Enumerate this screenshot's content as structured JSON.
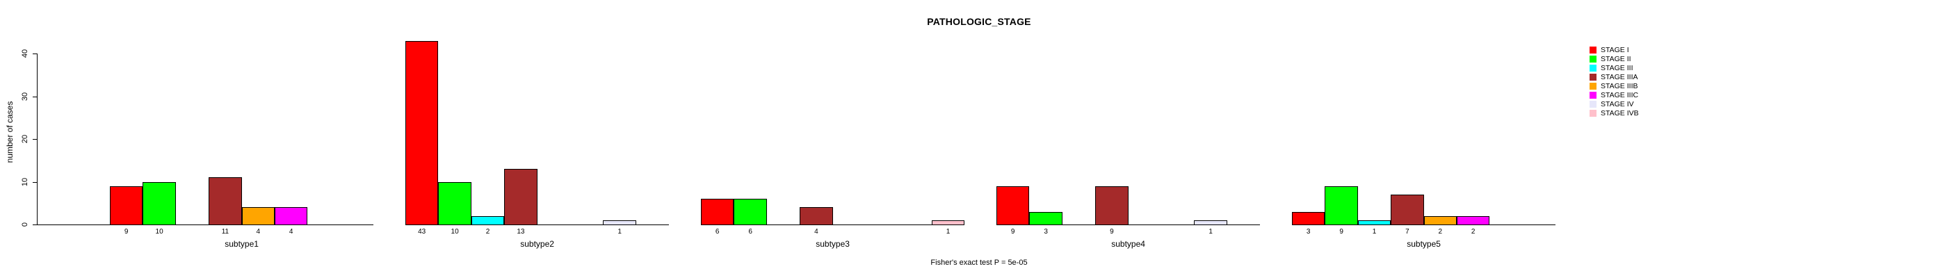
{
  "title": "PATHOLOGIC_STAGE",
  "subtitle": "Fisher's exact test P = 5e-05",
  "ylabel": "number of cases",
  "chart_data": {
    "type": "bar",
    "title": "PATHOLOGIC_STAGE",
    "annotation": "Fisher's exact test P = 5e-05",
    "xlabel": "",
    "ylabel": "number of cases",
    "ylim": [
      0,
      43
    ],
    "yticks": [
      0,
      10,
      20,
      30,
      40
    ],
    "grid": false,
    "legend_position": "top-right",
    "bar_border_color": "#000000",
    "categories": [
      "subtype1",
      "subtype2",
      "subtype3",
      "subtype4",
      "subtype5"
    ],
    "series": [
      {
        "name": "STAGE I",
        "color": "#FF0000",
        "values": [
          9,
          43,
          6,
          9,
          3
        ]
      },
      {
        "name": "STAGE II",
        "color": "#00FF00",
        "values": [
          10,
          10,
          6,
          3,
          9
        ]
      },
      {
        "name": "STAGE III",
        "color": "#00FFFF",
        "values": [
          0,
          2,
          0,
          0,
          1
        ]
      },
      {
        "name": "STAGE IIIA",
        "color": "#A52A2A",
        "values": [
          11,
          13,
          4,
          9,
          7
        ]
      },
      {
        "name": "STAGE IIIB",
        "color": "#FFA500",
        "values": [
          4,
          0,
          0,
          0,
          2
        ]
      },
      {
        "name": "STAGE IIIC",
        "color": "#FF00FF",
        "values": [
          4,
          0,
          0,
          0,
          2
        ]
      },
      {
        "name": "STAGE IV",
        "color": "#E6E6FA",
        "values": [
          0,
          1,
          0,
          1,
          0
        ]
      },
      {
        "name": "STAGE IVB",
        "color": "#FFC0CB",
        "values": [
          0,
          0,
          1,
          0,
          0
        ]
      }
    ]
  }
}
